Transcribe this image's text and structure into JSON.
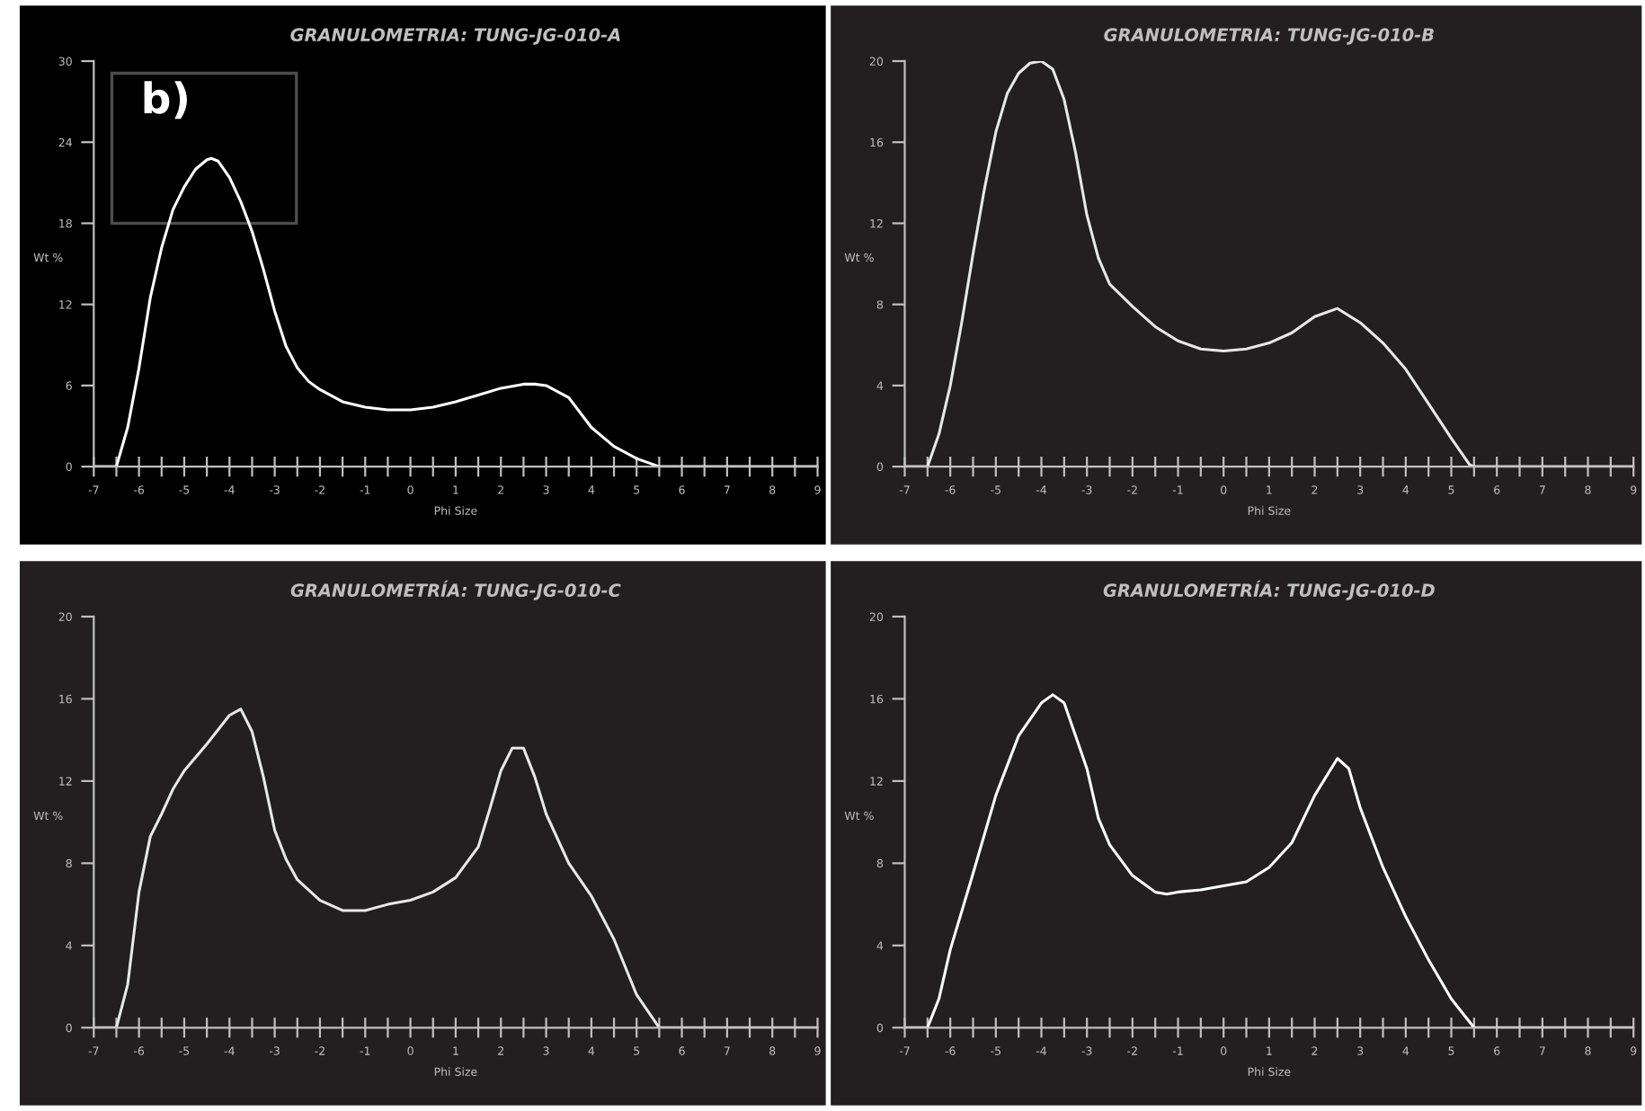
{
  "chart_data": [
    {
      "type": "line",
      "title": "GRANULOMETRIA: TUNG-JG-010-A",
      "xlabel": "Phi Size",
      "ylabel": "Wt %",
      "annotations": [
        "b)"
      ],
      "x": [
        -7,
        -6.5,
        -6.25,
        -6,
        -5.75,
        -5.5,
        -5.25,
        -5,
        -4.75,
        -4.5,
        -4.4,
        -4.25,
        -4,
        -3.75,
        -3.5,
        -3.25,
        -3,
        -2.75,
        -2.5,
        -2.25,
        -2,
        -1.5,
        -1,
        -0.5,
        0,
        0.5,
        1,
        1.5,
        2,
        2.5,
        2.75,
        3,
        3.5,
        4,
        4.5,
        5,
        5.5,
        9
      ],
      "series": [
        {
          "color": "#ffffff",
          "values": [
            0,
            0,
            2.9,
            7.3,
            12.5,
            16.2,
            19,
            20.7,
            22,
            22.7,
            22.8,
            22.6,
            21.4,
            19.6,
            17.4,
            14.6,
            11.5,
            8.9,
            7.3,
            6.3,
            5.7,
            4.8,
            4.4,
            4.2,
            4.2,
            4.4,
            4.8,
            5.3,
            5.8,
            6.1,
            6.1,
            6.0,
            5.1,
            2.9,
            1.5,
            0.6,
            0,
            0
          ]
        }
      ],
      "xlim": [
        -7,
        9
      ],
      "ylim": [
        0,
        30
      ],
      "yticks": [
        0,
        6,
        12,
        18,
        24,
        30
      ],
      "xticks": [
        -7,
        {
          "value": -6.5,
          "label": null
        },
        -6,
        {
          "value": -5.5,
          "label": null
        },
        -5,
        {
          "value": -4.5,
          "label": null
        },
        -4,
        {
          "value": -3.5,
          "label": null
        },
        -3,
        {
          "value": -2.5,
          "label": null
        },
        -2,
        {
          "value": -1.5,
          "label": null
        },
        -1,
        {
          "value": -0.5,
          "label": null
        },
        0,
        {
          "value": 0.5,
          "label": null
        },
        1,
        {
          "value": 1.5,
          "label": null
        },
        2,
        {
          "value": 2.5,
          "label": null
        },
        3,
        {
          "value": 3.5,
          "label": null
        },
        4,
        {
          "value": 4.5,
          "label": null
        },
        5,
        {
          "value": 5.5,
          "label": null
        },
        6,
        {
          "value": 6.5,
          "label": null
        },
        7,
        {
          "value": 7.5,
          "label": null
        },
        8,
        {
          "value": 8.5,
          "label": null
        },
        9
      ],
      "grid": false,
      "legend": false,
      "marker": "none",
      "line_style": "solid"
    },
    {
      "type": "line",
      "title": "GRANULOMETRIA: TUNG-JG-010-B",
      "xlabel": "Phi Size",
      "ylabel": "Wt %",
      "x": [
        -7,
        -6.5,
        -6.25,
        -6,
        -5.75,
        -5.5,
        -5.25,
        -5,
        -4.75,
        -4.5,
        -4.25,
        -4,
        -3.75,
        -3.5,
        -3.25,
        -3,
        -2.75,
        -2.5,
        -2,
        -1.5,
        -1,
        -0.5,
        0,
        0.5,
        1,
        1.5,
        2,
        2.5,
        3,
        3.5,
        4,
        4.5,
        5,
        5.4,
        5.5,
        9
      ],
      "series": [
        {
          "color": "#e8e8e8",
          "values": [
            0,
            0,
            1.6,
            4,
            7.1,
            10.5,
            13.7,
            16.5,
            18.4,
            19.4,
            19.9,
            20.0,
            19.6,
            18.1,
            15.5,
            12.4,
            10.3,
            9.0,
            7.9,
            6.9,
            6.2,
            5.8,
            5.7,
            5.8,
            6.1,
            6.6,
            7.4,
            7.8,
            7.1,
            6.1,
            4.8,
            3.1,
            1.4,
            0.1,
            0,
            0
          ]
        }
      ],
      "xlim": [
        -7,
        9
      ],
      "ylim": [
        0,
        20
      ],
      "yticks": [
        0,
        4,
        8,
        12,
        16,
        20
      ],
      "xticks": [
        -7,
        {
          "value": -6.5,
          "label": null
        },
        -6,
        {
          "value": -5.5,
          "label": null
        },
        -5,
        {
          "value": -4.5,
          "label": null
        },
        -4,
        {
          "value": -3.5,
          "label": null
        },
        -3,
        {
          "value": -2.5,
          "label": null
        },
        -2,
        {
          "value": -1.5,
          "label": null
        },
        -1,
        {
          "value": -0.5,
          "label": null
        },
        0,
        {
          "value": 0.5,
          "label": null
        },
        1,
        {
          "value": 1.5,
          "label": null
        },
        2,
        {
          "value": 2.5,
          "label": null
        },
        3,
        {
          "value": 3.5,
          "label": null
        },
        4,
        {
          "value": 4.5,
          "label": null
        },
        5,
        {
          "value": 5.5,
          "label": null
        },
        6,
        {
          "value": 6.5,
          "label": null
        },
        7,
        {
          "value": 7.5,
          "label": null
        },
        8,
        {
          "value": 8.5,
          "label": null
        },
        9
      ],
      "grid": false,
      "legend": false,
      "marker": "none",
      "line_style": "solid"
    },
    {
      "type": "line",
      "title": "GRANULOMETRÍA: TUNG-JG-010-C",
      "xlabel": "Phi Size",
      "ylabel": "Wt %",
      "x": [
        -7,
        -6.5,
        -6.25,
        -6,
        -5.75,
        -5.5,
        -5.25,
        -5,
        -4.5,
        -4,
        -3.75,
        -3.5,
        -3.25,
        -3,
        -2.75,
        -2.5,
        -2,
        -1.5,
        -1,
        -0.5,
        0,
        0.5,
        1,
        1.5,
        1.75,
        2,
        2.25,
        2.5,
        2.75,
        3,
        3.5,
        4,
        4.5,
        5,
        5.5,
        9
      ],
      "series": [
        {
          "color": "#e8e8e8",
          "values": [
            0,
            0,
            2.1,
            6.6,
            9.3,
            10.4,
            11.6,
            12.5,
            13.8,
            15.2,
            15.5,
            14.4,
            12.2,
            9.6,
            8.2,
            7.2,
            6.2,
            5.7,
            5.7,
            6.0,
            6.2,
            6.6,
            7.3,
            8.8,
            10.6,
            12.5,
            13.6,
            13.6,
            12.2,
            10.4,
            8.0,
            6.4,
            4.3,
            1.6,
            0,
            0
          ]
        }
      ],
      "xlim": [
        -7,
        9
      ],
      "ylim": [
        0,
        20
      ],
      "yticks": [
        0,
        4,
        8,
        12,
        16,
        20
      ],
      "xticks": [
        -7,
        {
          "value": -6.5,
          "label": null
        },
        -6,
        {
          "value": -5.5,
          "label": null
        },
        -5,
        {
          "value": -4.5,
          "label": null
        },
        -4,
        {
          "value": -3.5,
          "label": null
        },
        -3,
        {
          "value": -2.5,
          "label": null
        },
        -2,
        {
          "value": -1.5,
          "label": null
        },
        -1,
        {
          "value": -0.5,
          "label": null
        },
        0,
        {
          "value": 0.5,
          "label": null
        },
        1,
        {
          "value": 1.5,
          "label": null
        },
        2,
        {
          "value": 2.5,
          "label": null
        },
        3,
        {
          "value": 3.5,
          "label": null
        },
        4,
        {
          "value": 4.5,
          "label": null
        },
        5,
        {
          "value": 5.5,
          "label": null
        },
        6,
        {
          "value": 6.5,
          "label": null
        },
        7,
        {
          "value": 7.5,
          "label": null
        },
        8,
        {
          "value": 8.5,
          "label": null
        },
        9
      ],
      "grid": false,
      "legend": false,
      "marker": "none",
      "line_style": "solid"
    },
    {
      "type": "line",
      "title": "GRANULOMETRÍA: TUNG-JG-010-D",
      "xlabel": "Phi Size",
      "ylabel": "Wt %",
      "x": [
        -7,
        -6.5,
        -6.25,
        -6,
        -5.5,
        -5,
        -4.5,
        -4,
        -3.75,
        -3.5,
        -3.25,
        -3,
        -2.75,
        -2.5,
        -2,
        -1.5,
        -1.25,
        -1,
        -0.5,
        0,
        0.5,
        1,
        1.5,
        2,
        2.5,
        2.75,
        3,
        3.5,
        4,
        4.5,
        5,
        5.5,
        9
      ],
      "series": [
        {
          "color": "#ffffff",
          "values": [
            0,
            0,
            1.4,
            3.8,
            7.5,
            11.3,
            14.2,
            15.8,
            16.2,
            15.8,
            14.2,
            12.6,
            10.2,
            8.9,
            7.4,
            6.6,
            6.5,
            6.6,
            6.7,
            6.9,
            7.1,
            7.8,
            9.0,
            11.3,
            13.1,
            12.6,
            10.7,
            7.8,
            5.4,
            3.3,
            1.4,
            0,
            0
          ]
        }
      ],
      "xlim": [
        -7,
        9
      ],
      "ylim": [
        0,
        20
      ],
      "yticks": [
        0,
        4,
        8,
        12,
        16,
        20
      ],
      "xticks": [
        -7,
        {
          "value": -6.5,
          "label": null
        },
        -6,
        {
          "value": -5.5,
          "label": null
        },
        -5,
        {
          "value": -4.5,
          "label": null
        },
        -4,
        {
          "value": -3.5,
          "label": null
        },
        -3,
        {
          "value": -2.5,
          "label": null
        },
        -2,
        {
          "value": -1.5,
          "label": null
        },
        -1,
        {
          "value": -0.5,
          "label": null
        },
        0,
        {
          "value": 0.5,
          "label": null
        },
        1,
        {
          "value": 1.5,
          "label": null
        },
        2,
        {
          "value": 2.5,
          "label": null
        },
        3,
        {
          "value": 3.5,
          "label": null
        },
        4,
        {
          "value": 4.5,
          "label": null
        },
        5,
        {
          "value": 5.5,
          "label": null
        },
        6,
        {
          "value": 6.5,
          "label": null
        },
        7,
        {
          "value": 7.5,
          "label": null
        },
        8,
        {
          "value": 8.5,
          "label": null
        },
        9
      ],
      "grid": false,
      "legend": false,
      "marker": "none",
      "line_style": "solid"
    }
  ]
}
